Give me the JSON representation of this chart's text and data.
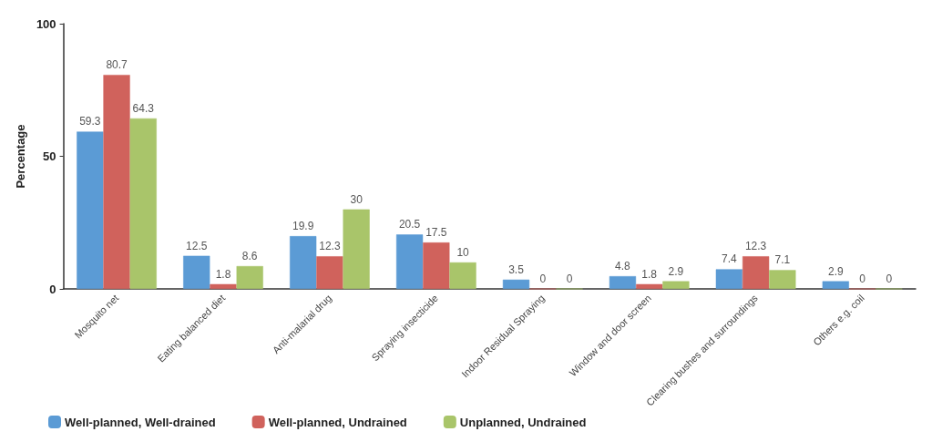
{
  "chart_data": {
    "type": "bar",
    "ylabel": "Percentage",
    "categories": [
      "Mosquito net",
      "Eating balanced diet",
      "Anti-malarial drug",
      "Spraying insecticide",
      "Indoor Residual Spraying",
      "Window and door screen",
      "Clearing bushes and surroundings",
      "Others e.g. coil"
    ],
    "series": [
      {
        "name": "Well-planned, Well-drained",
        "color": "#5b9bd5",
        "values": [
          59.3,
          12.5,
          19.9,
          20.5,
          3.5,
          4.8,
          7.4,
          2.9
        ]
      },
      {
        "name": "Well-planned, Undrained",
        "color": "#d0625c",
        "values": [
          80.7,
          1.8,
          12.3,
          17.5,
          0,
          1.8,
          12.3,
          0
        ]
      },
      {
        "name": "Unplanned, Undrained",
        "color": "#a9c56a",
        "values": [
          64.3,
          8.6,
          30,
          10,
          0,
          2.9,
          7.1,
          0
        ]
      }
    ],
    "ylim": [
      0,
      100
    ],
    "yticks": [
      0,
      50,
      100
    ],
    "grid": false,
    "legend": "bottom left",
    "data_labels": true
  }
}
